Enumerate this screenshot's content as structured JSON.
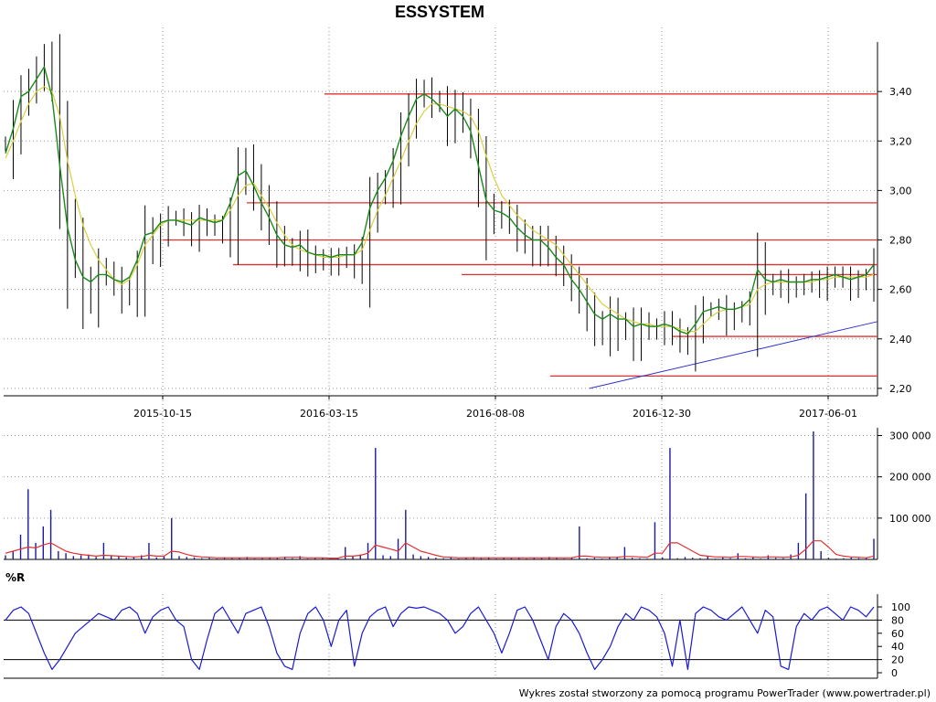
{
  "title": "ESSYSTEM",
  "footer": "Wykres został stworzony za pomocą programu PowerTrader (www.powertrader.pl)",
  "colors": {
    "price": "#000000",
    "ma_short": "#1a8a1a",
    "ma_long": "#d8d040",
    "support_resistance": "#e03030",
    "trendline": "#3030d0",
    "volume": "#1a1aa0",
    "volume_avg": "#e03030",
    "williams_r": "#1a1ad0",
    "grid": "#9a9a9a"
  },
  "chart_data": [
    {
      "name": "price",
      "type": "line",
      "x_tick_labels": [
        "2015-10-15",
        "2016-03-15",
        "2016-08-08",
        "2016-12-30",
        "2017-06-01"
      ],
      "y_ticks": [
        2.2,
        2.4,
        2.6,
        2.8,
        3.0,
        3.2,
        3.4
      ],
      "y_tick_labels": [
        "2,20",
        "2,40",
        "2,60",
        "2,80",
        "3,00",
        "3,20",
        "3,40"
      ],
      "ylim": [
        2.17,
        3.6
      ],
      "grid": true,
      "series": [
        {
          "values": [
            3.2,
            3.3,
            3.4,
            3.45,
            3.5,
            3.55,
            3.48,
            3.2,
            2.9,
            2.8,
            2.65,
            2.6,
            2.7,
            2.68,
            2.65,
            2.6,
            2.62,
            2.7,
            2.85,
            2.8,
            2.86,
            2.9,
            2.9,
            2.88,
            2.85,
            2.9,
            2.88,
            2.87,
            2.85,
            2.92,
            3.08,
            3.13,
            3.05,
            2.97,
            2.9,
            2.82,
            2.78,
            2.76,
            2.8,
            2.75,
            2.73,
            2.74,
            2.72,
            2.74,
            2.75,
            2.72,
            2.77,
            2.95,
            3.02,
            3.05,
            3.12,
            3.24,
            3.33,
            3.4,
            3.42,
            3.38,
            3.37,
            3.3,
            3.36,
            3.32,
            3.25,
            3.12,
            2.95,
            2.91,
            2.93,
            2.9,
            2.85,
            2.82,
            2.78,
            2.82,
            2.78,
            2.74,
            2.7,
            2.65,
            2.6,
            2.54,
            2.48,
            2.45,
            2.52,
            2.46,
            2.48,
            2.42,
            2.48,
            2.46,
            2.45,
            2.48,
            2.45,
            2.42,
            2.4,
            2.48,
            2.53,
            2.53,
            2.54,
            2.5,
            2.52,
            2.53,
            2.56,
            2.73,
            2.64,
            2.63,
            2.65,
            2.62,
            2.63,
            2.64,
            2.65,
            2.63,
            2.66,
            2.67,
            2.66,
            2.63,
            2.65,
            2.66,
            2.72
          ]
        },
        {
          "name": "",
          "values": [
            3.15,
            3.25,
            3.38,
            3.4,
            3.45,
            3.5,
            3.38,
            3.1,
            2.85,
            2.72,
            2.65,
            2.63,
            2.66,
            2.66,
            2.64,
            2.63,
            2.65,
            2.72,
            2.82,
            2.83,
            2.87,
            2.88,
            2.88,
            2.87,
            2.86,
            2.89,
            2.88,
            2.87,
            2.88,
            2.95,
            3.06,
            3.08,
            3.02,
            2.95,
            2.89,
            2.82,
            2.78,
            2.77,
            2.78,
            2.75,
            2.74,
            2.74,
            2.73,
            2.74,
            2.74,
            2.74,
            2.79,
            2.93,
            3.0,
            3.05,
            3.12,
            3.22,
            3.3,
            3.37,
            3.39,
            3.37,
            3.34,
            3.3,
            3.33,
            3.3,
            3.24,
            3.1,
            2.96,
            2.92,
            2.91,
            2.89,
            2.85,
            2.82,
            2.8,
            2.8,
            2.77,
            2.73,
            2.7,
            2.64,
            2.6,
            2.55,
            2.5,
            2.48,
            2.5,
            2.48,
            2.48,
            2.45,
            2.46,
            2.45,
            2.45,
            2.46,
            2.45,
            2.43,
            2.42,
            2.46,
            2.51,
            2.52,
            2.53,
            2.52,
            2.52,
            2.53,
            2.56,
            2.68,
            2.64,
            2.63,
            2.64,
            2.63,
            2.63,
            2.63,
            2.64,
            2.64,
            2.65,
            2.66,
            2.65,
            2.64,
            2.65,
            2.66,
            2.7
          ]
        },
        {
          "name": "",
          "values": [
            3.13,
            3.2,
            3.28,
            3.35,
            3.4,
            3.42,
            3.4,
            3.3,
            3.12,
            2.98,
            2.86,
            2.78,
            2.72,
            2.68,
            2.64,
            2.62,
            2.64,
            2.7,
            2.78,
            2.82,
            2.86,
            2.88,
            2.88,
            2.88,
            2.88,
            2.88,
            2.88,
            2.88,
            2.88,
            2.92,
            2.98,
            3.02,
            3.03,
            2.98,
            2.93,
            2.87,
            2.82,
            2.78,
            2.76,
            2.75,
            2.74,
            2.73,
            2.73,
            2.73,
            2.74,
            2.74,
            2.76,
            2.84,
            2.92,
            2.98,
            3.05,
            3.12,
            3.2,
            3.27,
            3.32,
            3.35,
            3.35,
            3.34,
            3.33,
            3.32,
            3.3,
            3.24,
            3.14,
            3.05,
            2.98,
            2.94,
            2.9,
            2.87,
            2.84,
            2.82,
            2.8,
            2.78,
            2.74,
            2.7,
            2.66,
            2.62,
            2.58,
            2.54,
            2.52,
            2.5,
            2.48,
            2.47,
            2.46,
            2.46,
            2.45,
            2.45,
            2.45,
            2.44,
            2.43,
            2.43,
            2.46,
            2.49,
            2.51,
            2.52,
            2.52,
            2.53,
            2.54,
            2.6,
            2.62,
            2.63,
            2.63,
            2.63,
            2.63,
            2.63,
            2.63,
            2.64,
            2.64,
            2.65,
            2.65,
            2.65,
            2.65,
            2.65,
            2.66
          ]
        }
      ],
      "horizontal_lines": [
        3.39,
        2.95,
        2.8,
        2.7,
        2.66,
        2.41,
        2.25
      ],
      "trendline": {
        "from": 2.2,
        "to": 2.47
      }
    },
    {
      "name": "volume",
      "type": "bar",
      "y_ticks": [
        100000,
        200000,
        300000
      ],
      "y_tick_labels": [
        "100 000",
        "200 000",
        "300 000"
      ],
      "ylim": [
        0,
        310000
      ],
      "grid": true,
      "series": [
        {
          "values": [
            10000,
            20000,
            60000,
            170000,
            40000,
            80000,
            120000,
            20000,
            15000,
            8000,
            10000,
            12000,
            6000,
            40000,
            8000,
            7000,
            5000,
            6000,
            10000,
            40000,
            5000,
            7000,
            100000,
            8000,
            6000,
            5000,
            3000,
            4000,
            2000,
            5000,
            3000,
            4000,
            6000,
            2000,
            3000,
            5000,
            4000,
            6000,
            3000,
            8000,
            2000,
            3000,
            4000,
            2000,
            3000,
            30000,
            8000,
            12000,
            40000,
            270000,
            10000,
            8000,
            50000,
            120000,
            12000,
            8000,
            6000,
            4000,
            3000,
            5000,
            2000,
            4000,
            6000,
            3000,
            5000,
            2000,
            4000,
            3000,
            5000,
            2000,
            4000,
            3000,
            6000,
            4000,
            2000,
            5000,
            80000,
            3000,
            4000,
            2000,
            5000,
            6000,
            30000,
            4000,
            3000,
            2000,
            90000,
            5000,
            270000,
            3000,
            6000,
            4000,
            3000,
            8000,
            2000,
            5000,
            3000,
            15000,
            3000,
            6000,
            2000,
            10000,
            4000,
            3000,
            12000,
            40000,
            160000,
            310000,
            20000,
            4000,
            2000,
            3000,
            5000,
            3000,
            4000,
            50000
          ]
        },
        {
          "name": "",
          "values": [
            15000,
            20000,
            25000,
            30000,
            28000,
            35000,
            40000,
            30000,
            20000,
            15000,
            12000,
            10000,
            8000,
            10000,
            9000,
            8000,
            7000,
            6000,
            7000,
            10000,
            8000,
            8000,
            20000,
            18000,
            12000,
            8000,
            6000,
            5000,
            4000,
            4000,
            4000,
            4000,
            4000,
            4000,
            4000,
            4000,
            4000,
            5000,
            5000,
            5000,
            4000,
            4000,
            4000,
            3000,
            3000,
            8000,
            8000,
            10000,
            15000,
            35000,
            30000,
            25000,
            20000,
            40000,
            30000,
            20000,
            15000,
            10000,
            6000,
            5000,
            4000,
            4000,
            4000,
            4000,
            4000,
            4000,
            4000,
            4000,
            4000,
            4000,
            4000,
            4000,
            4000,
            4000,
            4000,
            4000,
            8000,
            8000,
            6000,
            5000,
            5000,
            5000,
            7000,
            7000,
            6000,
            5000,
            15000,
            15000,
            40000,
            40000,
            30000,
            20000,
            10000,
            8000,
            6000,
            6000,
            5000,
            7000,
            7000,
            6000,
            5000,
            6000,
            6000,
            5000,
            6000,
            10000,
            25000,
            45000,
            45000,
            30000,
            12000,
            8000,
            6000,
            5000,
            4000,
            8000
          ]
        }
      ]
    },
    {
      "name": "williams_r",
      "type": "line",
      "title": "%R",
      "y_ticks": [
        0,
        20,
        40,
        60,
        80,
        100
      ],
      "y_tick_labels": [
        "0",
        "20",
        "40",
        "60",
        "80",
        "100"
      ],
      "ylim": [
        0,
        100
      ],
      "reference_lines": [
        80,
        20
      ],
      "grid": true,
      "series": [
        {
          "values": [
            80,
            95,
            100,
            90,
            60,
            30,
            5,
            20,
            40,
            60,
            70,
            80,
            90,
            85,
            80,
            95,
            100,
            90,
            60,
            85,
            95,
            100,
            80,
            70,
            20,
            5,
            50,
            90,
            100,
            80,
            60,
            90,
            95,
            100,
            70,
            30,
            10,
            5,
            60,
            90,
            100,
            80,
            40,
            80,
            95,
            10,
            60,
            85,
            95,
            100,
            70,
            90,
            100,
            98,
            100,
            95,
            90,
            80,
            60,
            70,
            90,
            100,
            80,
            60,
            30,
            60,
            95,
            100,
            80,
            50,
            20,
            70,
            90,
            80,
            60,
            30,
            5,
            20,
            40,
            70,
            90,
            80,
            100,
            95,
            85,
            60,
            10,
            80,
            5,
            90,
            100,
            95,
            85,
            80,
            90,
            100,
            80,
            60,
            95,
            85,
            10,
            5,
            70,
            90,
            80,
            95,
            100,
            90,
            80,
            100,
            95,
            85,
            100
          ]
        }
      ]
    }
  ]
}
